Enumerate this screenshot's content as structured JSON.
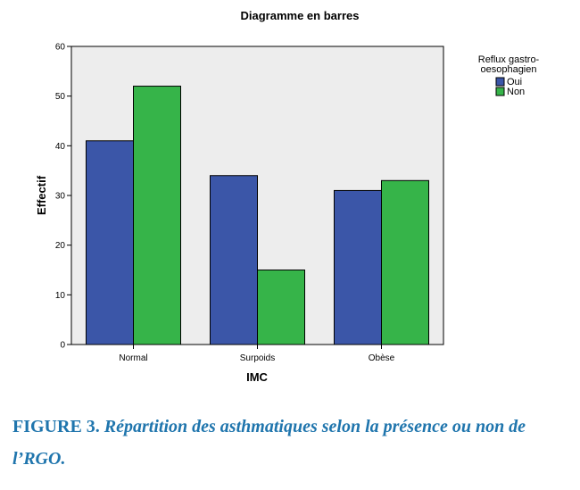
{
  "chart_data": {
    "type": "bar",
    "title": "Diagramme en barres",
    "xlabel": "IMC",
    "ylabel": "Effectif",
    "categories": [
      "Normal",
      "Surpoids",
      "Obèse"
    ],
    "series": [
      {
        "name": "Oui",
        "values": [
          41,
          34,
          31
        ],
        "color": "#3b56a8"
      },
      {
        "name": "Non",
        "values": [
          52,
          15,
          33
        ],
        "color": "#36b449"
      }
    ],
    "ylim": [
      0,
      60
    ],
    "yticks": [
      0,
      10,
      20,
      30,
      40,
      50,
      60
    ],
    "grid": false,
    "legend": {
      "title": "Reflux gastro-\noesophagien",
      "placement": "right"
    },
    "plot_background": "#ededed"
  },
  "caption": {
    "label": "FIGURE 3.",
    "text": "Répartition des asthmatiques selon la présence ou non de l’RGO."
  }
}
